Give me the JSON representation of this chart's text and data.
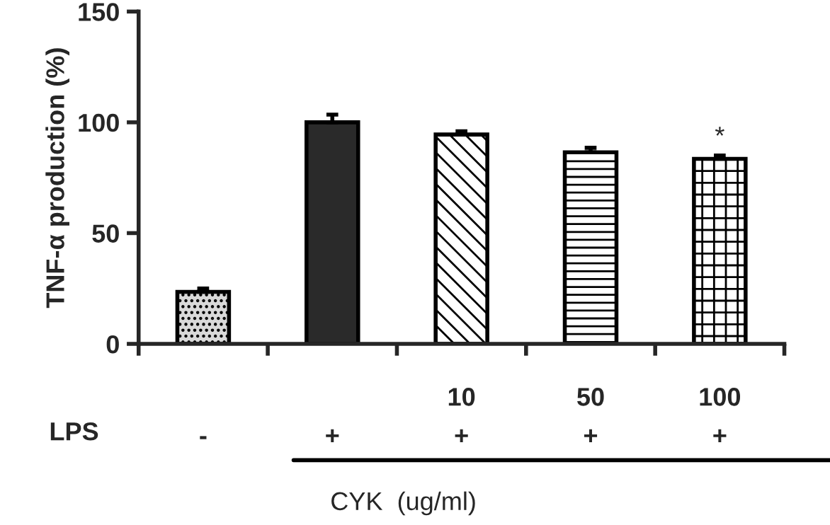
{
  "chart_data": {
    "type": "bar",
    "ylabel": "TNF-α production (%)",
    "categories": [
      "\n-",
      "\n+",
      "10\n+",
      "50\n+",
      "100\n+"
    ],
    "values": [
      23.5,
      100,
      94.5,
      86.5,
      83.5
    ],
    "errors": [
      1.5,
      3.5,
      1.5,
      2,
      1.5
    ],
    "colors": [
      "#d9d9d9",
      "#2a2a2a",
      "#ffffff",
      "#ffffff",
      "#ffffff"
    ],
    "ylim": [
      0,
      150
    ],
    "yticks": [
      0,
      50,
      100,
      150
    ],
    "annotations": [
      "LPS",
      "CYK  (ug/ml)",
      "*"
    ],
    "grid": false,
    "legend": false
  }
}
